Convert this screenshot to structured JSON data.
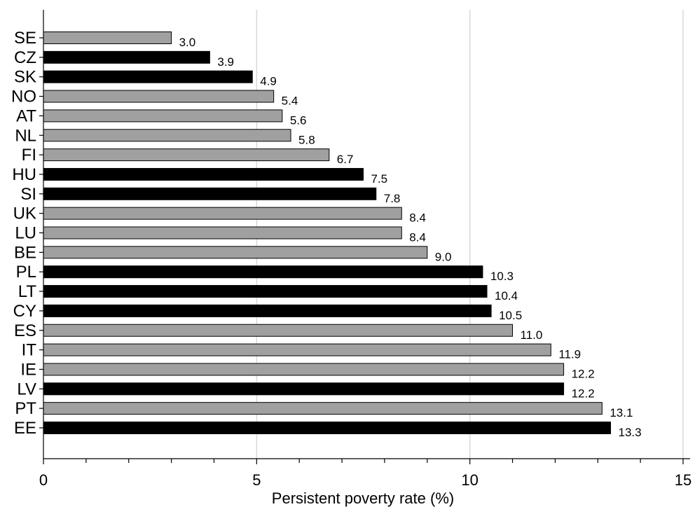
{
  "chart_data": {
    "type": "bar",
    "orientation": "horizontal",
    "title": "",
    "xlabel": "Persistent poverty rate (%)",
    "ylabel": "",
    "xlim": [
      0,
      15
    ],
    "major_ticks": [
      0,
      5,
      10,
      15
    ],
    "minor_tick_step": 1,
    "grid": "vertical-major",
    "colors": {
      "gray": "#a0a0a0",
      "black": "#000000",
      "grid": "#d9d9d9"
    },
    "categories": [
      "SE",
      "CZ",
      "SK",
      "NO",
      "AT",
      "NL",
      "FI",
      "HU",
      "SI",
      "UK",
      "LU",
      "BE",
      "PL",
      "LT",
      "CY",
      "ES",
      "IT",
      "IE",
      "LV",
      "PT",
      "EE"
    ],
    "values": [
      3.0,
      3.9,
      4.9,
      5.4,
      5.6,
      5.8,
      6.7,
      7.5,
      7.8,
      8.4,
      8.4,
      9.0,
      10.3,
      10.4,
      10.5,
      11.0,
      11.9,
      12.2,
      12.2,
      13.1,
      13.3
    ],
    "value_labels": [
      "3.0",
      "3.9",
      "4.9",
      "5.4",
      "5.6",
      "5.8",
      "6.7",
      "7.5",
      "7.8",
      "8.4",
      "8.4",
      "9.0",
      "10.3",
      "10.4",
      "10.5",
      "11.0",
      "11.9",
      "12.2",
      "12.2",
      "13.1",
      "13.3"
    ],
    "bar_colors": [
      "gray",
      "black",
      "black",
      "gray",
      "gray",
      "gray",
      "gray",
      "black",
      "black",
      "gray",
      "gray",
      "gray",
      "black",
      "black",
      "black",
      "gray",
      "gray",
      "gray",
      "black",
      "gray",
      "black"
    ]
  }
}
